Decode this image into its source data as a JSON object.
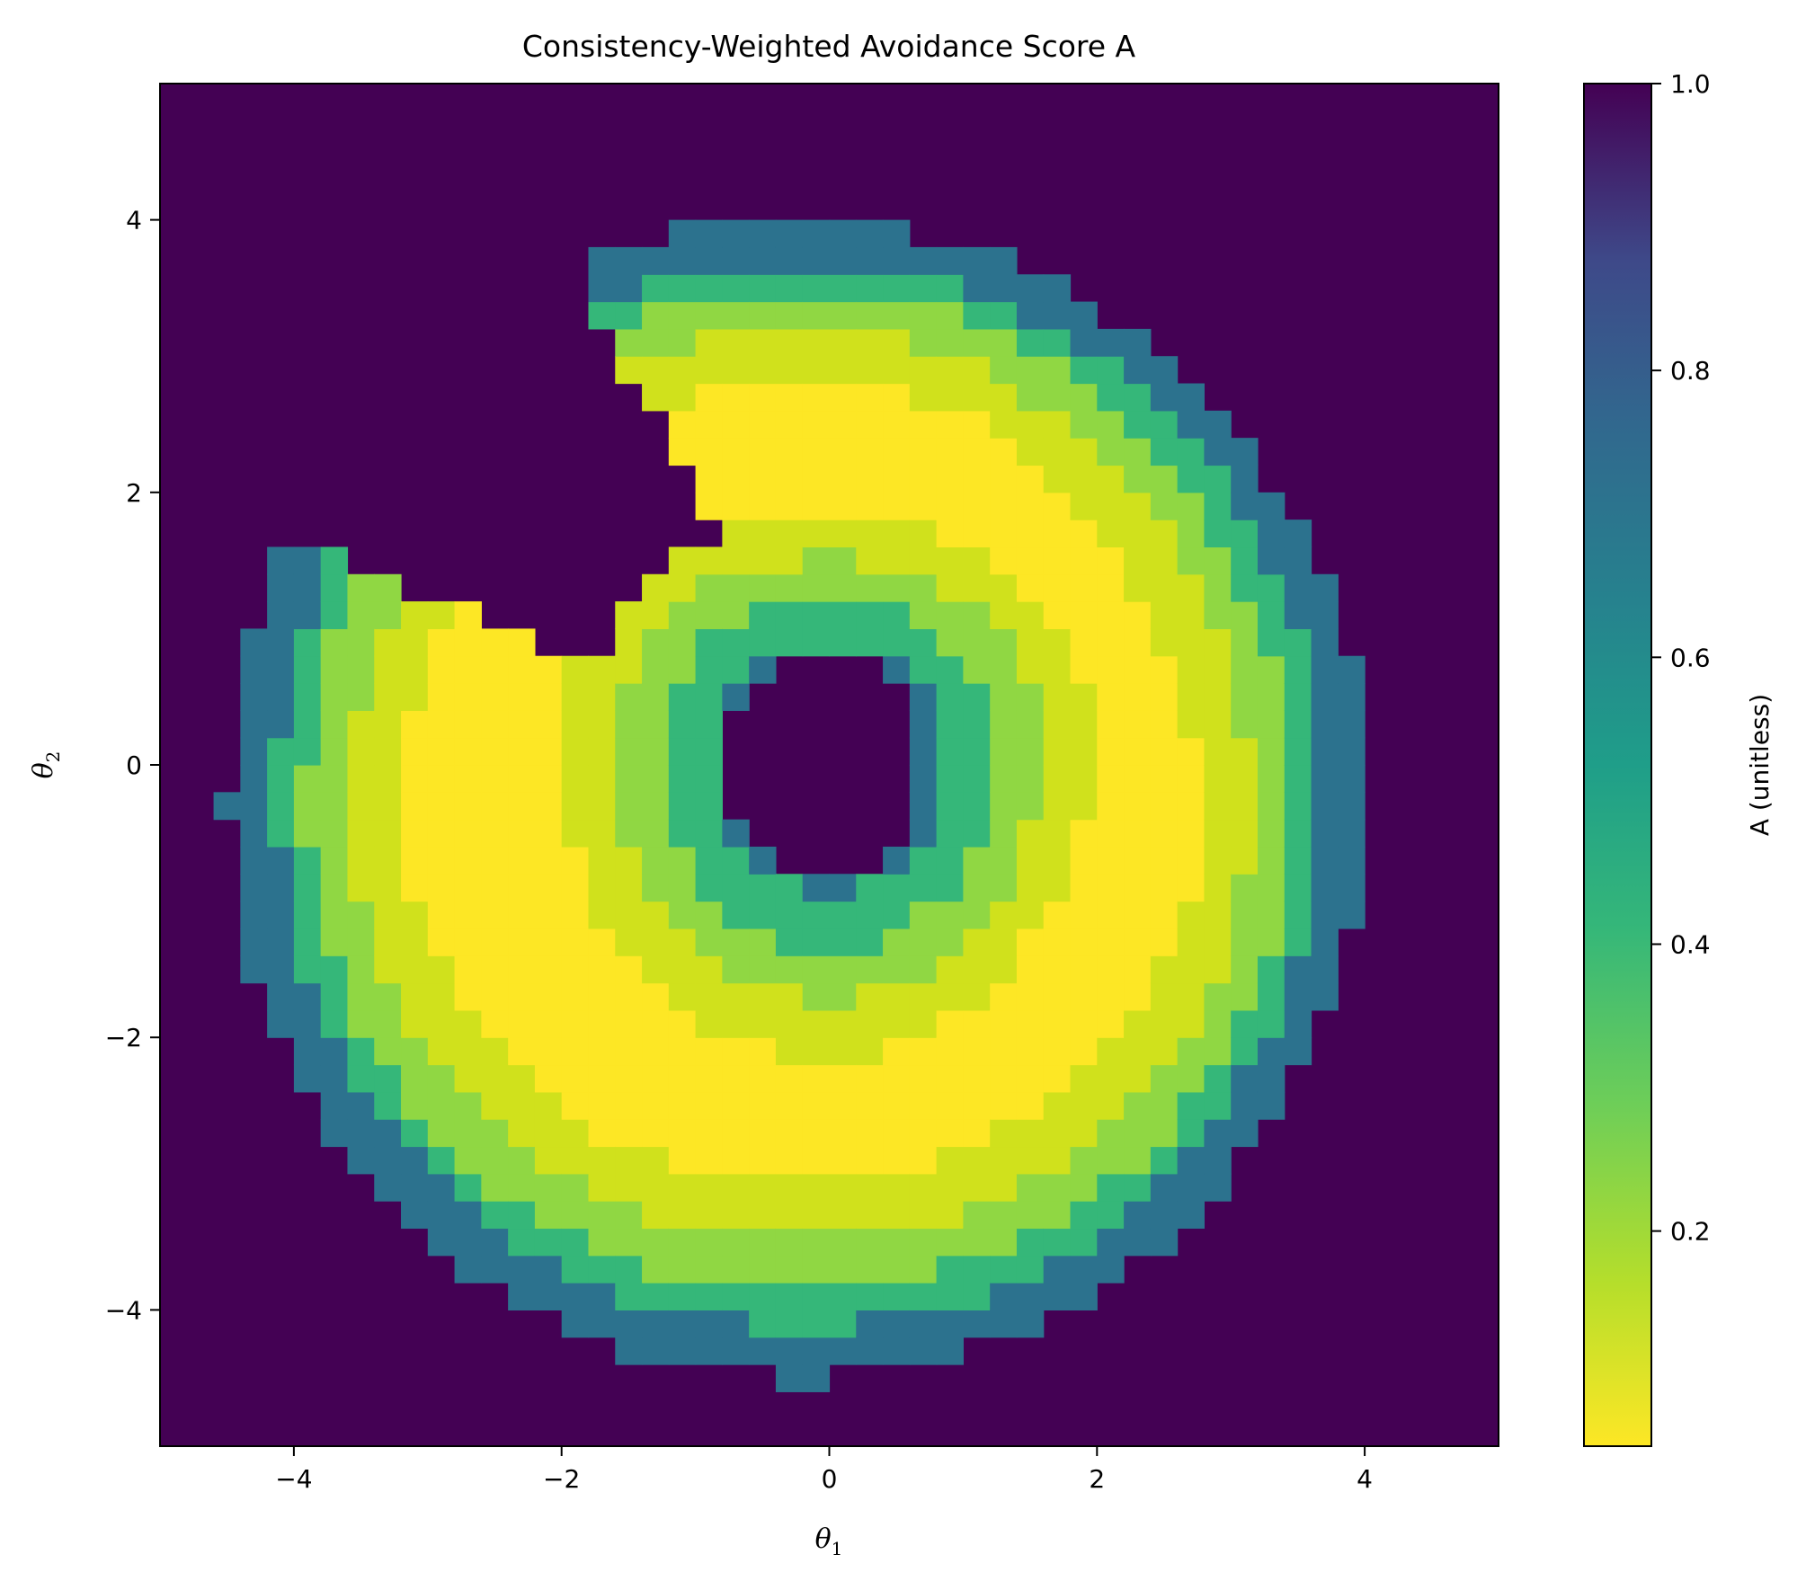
{
  "chart_data": {
    "type": "heatmap",
    "title": "Consistency-Weighted Avoidance Score A",
    "xlabel": "θ",
    "xlabel_sub": "1",
    "ylabel": "θ",
    "ylabel_sub": "2",
    "xlim": [
      -5,
      5
    ],
    "ylim": [
      -5,
      5
    ],
    "x_ticks": [
      -4,
      -2,
      0,
      2,
      4
    ],
    "y_ticks": [
      -4,
      -2,
      0,
      2,
      4
    ],
    "x_tick_labels": [
      "−4",
      "−2",
      "0",
      "2",
      "4"
    ],
    "y_tick_labels": [
      "−4",
      "−2",
      "0",
      "2",
      "4"
    ],
    "grid": false,
    "colormap": "viridis (reversed)",
    "colorbar": {
      "label": "A (unitless)",
      "range": [
        0.05,
        1.0
      ],
      "ticks": [
        0.2,
        0.4,
        0.6,
        0.8,
        1.0
      ],
      "tick_labels": [
        "0.2",
        "0.4",
        "0.6",
        "0.8",
        "1.0"
      ]
    },
    "field": {
      "description": "Annulus-like region of low A around a hole at the origin; A = 1.0 outside the region and in the central hole",
      "levels": [
        0.05,
        0.15,
        0.25,
        0.38,
        0.58,
        1.0
      ],
      "outside_value": 1.0,
      "hole_value": 1.0
    },
    "colors": {
      "A_1.0": "#440154",
      "A_0.58": "#2c728e",
      "A_0.38": "#35b779",
      "A_0.25": "#90d743",
      "A_0.15": "#d0e11c",
      "A_0.05": "#fde725"
    }
  }
}
